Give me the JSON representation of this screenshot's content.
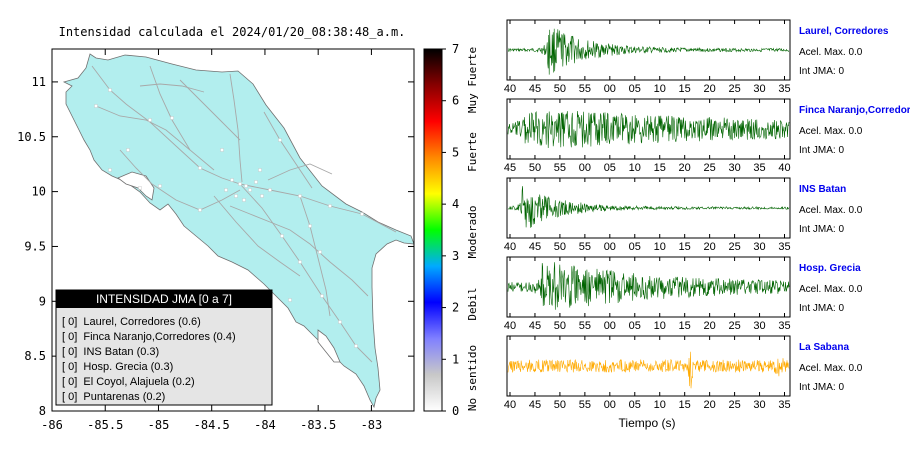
{
  "map": {
    "title": "Intensidad calculada el 2024/01/20_08:38:48_a.m.",
    "x_ticks": [
      "-86",
      "-85.5",
      "-85",
      "-84.5",
      "-84",
      "-83.5",
      "-83"
    ],
    "y_ticks": [
      "11",
      "10.5",
      "10",
      "9.5",
      "9",
      "8.5",
      "8"
    ],
    "xlim": [
      -86,
      -82.6
    ],
    "ylim": [
      8,
      11.3
    ],
    "land_color": "#b2eeee",
    "road_color": "#a8a8a8",
    "box_title": "INTENSIDAD JMA [0 a 7]",
    "box_items": [
      "[ 0]  Laurel, Corredores (0.6)",
      "[ 0]  Finca Naranjo,Corredores (0.4)",
      "[ 0]  INS Batan (0.3)",
      "[ 0]  Hosp. Grecia (0.3)",
      "[ 0]  El Coyol, Alajuela (0.2)",
      "[ 0]  Puntarenas (0.2)"
    ]
  },
  "colorbar": {
    "ticks": [
      "0",
      "1",
      "2",
      "3",
      "4",
      "5",
      "6",
      "7"
    ],
    "labels": [
      "No sentido",
      "Debil",
      "Moderado",
      "Fuerte",
      "Muy Fuerte"
    ],
    "stops": [
      "#ffffff",
      "#c8c8c8",
      "#8080ff",
      "#0000ff",
      "#00aaff",
      "#00ff00",
      "#ffff00",
      "#ff8800",
      "#ff0000",
      "#880000",
      "#000000"
    ]
  },
  "chart_data": {
    "type": "line",
    "xlabel": "Tiempo (s)",
    "panels": [
      {
        "station": "Laurel, Corredores",
        "acel": "Acel. Max. 0.0",
        "jma": "Int JMA: 0",
        "color": "#006400",
        "x_ticks": [
          "40",
          "45",
          "50",
          "55",
          "00",
          "05",
          "10",
          "15",
          "20",
          "25",
          "30",
          "35"
        ],
        "burst": 0.14,
        "decay": 0.13,
        "noise": 0.06,
        "amp": 0.95
      },
      {
        "station": "Finca Naranjo,Corredores",
        "acel": "Acel. Max. 0.0",
        "jma": "Int JMA: 0",
        "color": "#006400",
        "x_ticks": [
          "45",
          "50",
          "55",
          "00",
          "05",
          "10",
          "15",
          "20",
          "25",
          "30",
          "35",
          "40"
        ],
        "burst": 0.05,
        "decay": 0.6,
        "noise": 0.35,
        "amp": 0.65
      },
      {
        "station": "INS Batan",
        "acel": "Acel. Max. 0.0",
        "jma": "Int JMA: 0",
        "color": "#006400",
        "x_ticks": [
          "40",
          "45",
          "50",
          "55",
          "00",
          "05",
          "10",
          "15",
          "20",
          "25",
          "30",
          "35"
        ],
        "burst": 0.05,
        "decay": 0.12,
        "noise": 0.05,
        "amp": 0.9
      },
      {
        "station": "Hosp. Grecia",
        "acel": "Acel. Max. 0.0",
        "jma": "Int JMA: 0",
        "color": "#006400",
        "x_ticks": [
          "40",
          "45",
          "50",
          "55",
          "00",
          "05",
          "10",
          "15",
          "20",
          "25",
          "30",
          "35"
        ],
        "burst": 0.12,
        "decay": 0.35,
        "noise": 0.2,
        "amp": 0.9
      },
      {
        "station": "La Sabana",
        "acel": "Acel. Max. 0.0",
        "jma": "Int JMA: 0",
        "color": "#ffaa00",
        "x_ticks": [
          "40",
          "45",
          "50",
          "55",
          "00",
          "05",
          "10",
          "15",
          "20",
          "25",
          "30",
          "35"
        ],
        "burst": 0.65,
        "decay": 0.02,
        "noise": 0.28,
        "amp": 0.85
      }
    ]
  }
}
